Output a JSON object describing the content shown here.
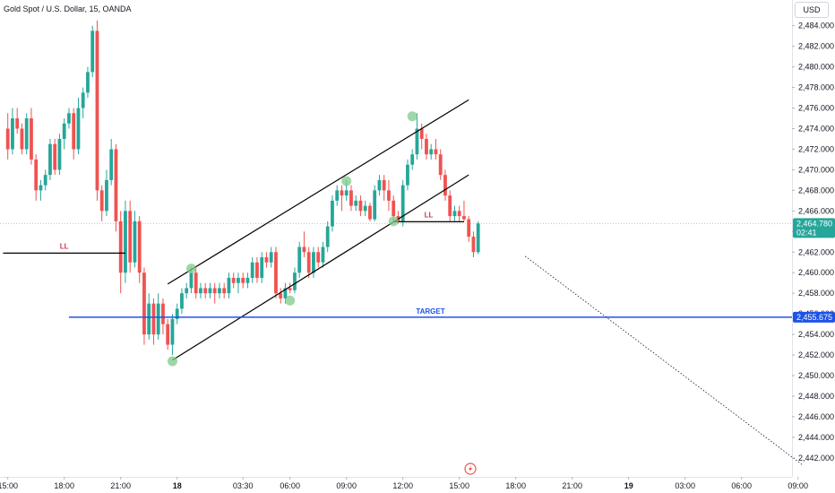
{
  "header": {
    "title": "Gold Spot / U.S. Dollar, 15, OANDA",
    "currency": "USD"
  },
  "colors": {
    "up": "#26a69a",
    "down": "#ef5350",
    "target_line": "#1e53e5",
    "highlight": "#7fc98b",
    "last_price_bg": "#26a69a",
    "ll_label": "#d2334c"
  },
  "icons": {
    "bottom_logo": "tradingview-lightning-icon"
  },
  "chart_data": {
    "type": "candlestick",
    "ylim": [
      2440.5,
      2486.5
    ],
    "y_ticks": [
      "2,442.000",
      "2,444.000",
      "2,446.000",
      "2,448.000",
      "2,450.000",
      "2,452.000",
      "2,454.000",
      "2,456.000",
      "2,458.000",
      "2,460.000",
      "2,462.000",
      "2,464.000",
      "2,466.000",
      "2,468.000",
      "2,470.000",
      "2,472.000",
      "2,474.000",
      "2,476.000",
      "2,478.000",
      "2,480.000",
      "2,482.000",
      "2,484.000"
    ],
    "x_ticks": [
      {
        "label": "15:00",
        "bar": 0,
        "bold": false
      },
      {
        "label": "18:00",
        "bar": 12,
        "bold": false
      },
      {
        "label": "21:00",
        "bar": 24,
        "bold": false
      },
      {
        "label": "18",
        "bar": 36,
        "bold": true
      },
      {
        "label": "03:30",
        "bar": 50,
        "bold": false
      },
      {
        "label": "06:00",
        "bar": 60,
        "bold": false
      },
      {
        "label": "09:00",
        "bar": 72,
        "bold": false
      },
      {
        "label": "12:00",
        "bar": 84,
        "bold": false
      },
      {
        "label": "15:00",
        "bar": 96,
        "bold": false
      },
      {
        "label": "18:00",
        "bar": 108,
        "bold": false
      },
      {
        "label": "21:00",
        "bar": 120,
        "bold": false
      },
      {
        "label": "19",
        "bar": 132,
        "bold": true
      },
      {
        "label": "03:00",
        "bar": 144,
        "bold": false
      },
      {
        "label": "06:00",
        "bar": 156,
        "bold": false
      },
      {
        "label": "09:00",
        "bar": 168,
        "bold": false
      }
    ],
    "candles": [
      [
        2474,
        2475.5,
        2471,
        2472
      ],
      [
        2472,
        2476,
        2471.5,
        2475
      ],
      [
        2475,
        2476,
        2473.5,
        2474
      ],
      [
        2474,
        2474.5,
        2471.5,
        2472
      ],
      [
        2472,
        2475.5,
        2471.5,
        2475
      ],
      [
        2475,
        2476,
        2470.5,
        2471
      ],
      [
        2471,
        2471.5,
        2467,
        2468
      ],
      [
        2468,
        2469,
        2467,
        2468.5
      ],
      [
        2468.5,
        2470,
        2468,
        2469.5
      ],
      [
        2469.5,
        2473,
        2469,
        2472.5
      ],
      [
        2472.5,
        2473,
        2469.5,
        2470
      ],
      [
        2470,
        2473.5,
        2469.5,
        2473
      ],
      [
        2473,
        2475,
        2472,
        2474.5
      ],
      [
        2474.5,
        2476,
        2474,
        2475.5
      ],
      [
        2475.5,
        2476,
        2471,
        2472
      ],
      [
        2472,
        2477,
        2471.5,
        2476
      ],
      [
        2476,
        2478,
        2475,
        2477.5
      ],
      [
        2477.5,
        2480,
        2477,
        2479.5
      ],
      [
        2479.5,
        2484,
        2479,
        2483.5
      ],
      [
        2483.5,
        2484.5,
        2467,
        2468
      ],
      [
        2468,
        2468.5,
        2465,
        2466
      ],
      [
        2466,
        2470,
        2465.5,
        2469
      ],
      [
        2469,
        2473,
        2468.5,
        2472
      ],
      [
        2472,
        2472.5,
        2464,
        2465
      ],
      [
        2465,
        2466,
        2458,
        2460
      ],
      [
        2460,
        2467,
        2459,
        2466
      ],
      [
        2466,
        2467,
        2460,
        2461
      ],
      [
        2461,
        2466,
        2460.5,
        2465
      ],
      [
        2465,
        2465.5,
        2459,
        2460
      ],
      [
        2460,
        2460.5,
        2453,
        2454
      ],
      [
        2454,
        2458,
        2453.5,
        2457
      ],
      [
        2457,
        2457.5,
        2453,
        2454
      ],
      [
        2454,
        2458,
        2453.5,
        2457
      ],
      [
        2457,
        2457.5,
        2454,
        2455
      ],
      [
        2455,
        2455.5,
        2452.5,
        2453
      ],
      [
        2453,
        2456,
        2452,
        2455.5
      ],
      [
        2455.5,
        2457,
        2455,
        2456.5
      ],
      [
        2456.5,
        2458.5,
        2456,
        2458
      ],
      [
        2458,
        2459,
        2457.5,
        2458.5
      ],
      [
        2458.5,
        2460.5,
        2458,
        2460
      ],
      [
        2460,
        2460.5,
        2457.5,
        2458
      ],
      [
        2458,
        2459,
        2457.5,
        2458.5
      ],
      [
        2458.5,
        2459,
        2457.5,
        2458
      ],
      [
        2458,
        2459,
        2457.5,
        2458.5
      ],
      [
        2458.5,
        2459,
        2457,
        2458
      ],
      [
        2458,
        2459,
        2457.5,
        2458.5
      ],
      [
        2458.5,
        2459,
        2457.5,
        2458
      ],
      [
        2458,
        2460,
        2457.5,
        2459.5
      ],
      [
        2459.5,
        2460,
        2458.5,
        2459
      ],
      [
        2459,
        2460,
        2458,
        2459.5
      ],
      [
        2459.5,
        2460,
        2458.5,
        2459
      ],
      [
        2459,
        2460,
        2458.5,
        2459.5
      ],
      [
        2459.5,
        2461.5,
        2459,
        2461
      ],
      [
        2461,
        2461.5,
        2459,
        2459.5
      ],
      [
        2459.5,
        2462,
        2459,
        2461.5
      ],
      [
        2461.5,
        2462,
        2460.5,
        2461
      ],
      [
        2461,
        2462.5,
        2460.5,
        2462
      ],
      [
        2462,
        2462.5,
        2457.5,
        2458
      ],
      [
        2458,
        2458.5,
        2457,
        2457.5
      ],
      [
        2457.5,
        2459,
        2457,
        2458.5
      ],
      [
        2458.5,
        2459,
        2458,
        2458.3
      ],
      [
        2458.3,
        2460.5,
        2458,
        2460
      ],
      [
        2460,
        2463,
        2459.5,
        2462.5
      ],
      [
        2462.5,
        2464,
        2461.5,
        2462
      ],
      [
        2462,
        2462.5,
        2459.5,
        2460
      ],
      [
        2460,
        2462.5,
        2459.5,
        2462
      ],
      [
        2462,
        2462.5,
        2460.5,
        2461
      ],
      [
        2461,
        2463,
        2460.5,
        2462.5
      ],
      [
        2462.5,
        2465,
        2462,
        2464.5
      ],
      [
        2464.5,
        2467.5,
        2464,
        2467
      ],
      [
        2467,
        2468.5,
        2466.5,
        2468
      ],
      [
        2468,
        2468.5,
        2466,
        2467.5
      ],
      [
        2467.5,
        2469,
        2467,
        2468
      ],
      [
        2468,
        2468.5,
        2466,
        2466.5
      ],
      [
        2466.5,
        2467.5,
        2466,
        2467
      ],
      [
        2467,
        2467.5,
        2465.5,
        2466
      ],
      [
        2466,
        2467,
        2465.5,
        2466.5
      ],
      [
        2466.5,
        2466.8,
        2465,
        2465.2
      ],
      [
        2465.2,
        2468.5,
        2465,
        2468
      ],
      [
        2468,
        2469.5,
        2467.5,
        2469
      ],
      [
        2469,
        2469.5,
        2467,
        2468
      ],
      [
        2468,
        2469,
        2466,
        2467
      ],
      [
        2467,
        2467.5,
        2465,
        2465.5
      ],
      [
        2465.5,
        2466,
        2464.8,
        2465
      ],
      [
        2465,
        2469,
        2464.5,
        2468.5
      ],
      [
        2468.5,
        2471,
        2468,
        2470.5
      ],
      [
        2470.5,
        2472,
        2470,
        2471.5
      ],
      [
        2471.5,
        2475.5,
        2471,
        2474
      ],
      [
        2474,
        2474.5,
        2472,
        2473
      ],
      [
        2473,
        2473.5,
        2471,
        2471.5
      ],
      [
        2471.5,
        2472.5,
        2471,
        2472
      ],
      [
        2472,
        2473,
        2471,
        2471.5
      ],
      [
        2471.5,
        2472,
        2469,
        2469.5
      ],
      [
        2469.5,
        2470,
        2467,
        2467.5
      ],
      [
        2467.5,
        2468,
        2465,
        2465.5
      ],
      [
        2465.5,
        2466.5,
        2465,
        2466
      ],
      [
        2466,
        2466.5,
        2465,
        2465.5
      ],
      [
        2465.5,
        2467,
        2465,
        2465.2
      ],
      [
        2465.2,
        2465.5,
        2463,
        2463.5
      ],
      [
        2463.5,
        2464,
        2461.5,
        2462
      ],
      [
        2462,
        2465,
        2461.8,
        2464.78
      ]
    ],
    "horizontal_lines": [
      {
        "label": "LL",
        "from_bar": -1,
        "to_bar": 25,
        "y": 2461.9
      },
      {
        "label": "LL",
        "from_bar": 82,
        "to_bar": 97,
        "y": 2464.95
      }
    ],
    "target": {
      "label": "TARGET",
      "price": 2455.675,
      "price_label": "2,455.675",
      "from_bar": 13
    },
    "channel": {
      "upper": [
        {
          "bar": 34,
          "price": 2458.9
        },
        {
          "bar": 98,
          "price": 2476.8
        }
      ],
      "lower": [
        {
          "bar": 35,
          "price": 2451.5
        },
        {
          "bar": 98,
          "price": 2469.5
        }
      ]
    },
    "pivots": [
      {
        "bar": 35,
        "price": 2451.4
      },
      {
        "bar": 39,
        "price": 2460.4
      },
      {
        "bar": 60,
        "price": 2457.3
      },
      {
        "bar": 72,
        "price": 2468.9
      },
      {
        "bar": 82,
        "price": 2465.0
      },
      {
        "bar": 86,
        "price": 2475.2
      }
    ],
    "projection": {
      "from": {
        "bar": 110,
        "price": 2461.6
      },
      "to": {
        "bar": 169,
        "price": 2441.3
      }
    },
    "last_price": {
      "price": 2464.78,
      "label": "2,464.780",
      "countdown": "02:41"
    }
  }
}
